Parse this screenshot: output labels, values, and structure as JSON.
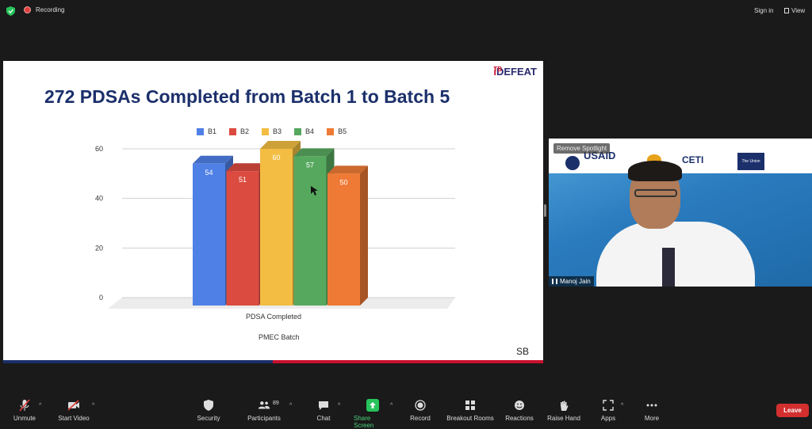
{
  "topbar": {
    "recording_label": "Recording",
    "signin_label": "Sign in",
    "view_label": "View"
  },
  "slide": {
    "brand_prefix": "i",
    "brand_main": "DEFEAT",
    "brand_suffix": "TB",
    "title": "272 PDSAs Completed from Batch 1 to Batch 5",
    "footer_tag": "SB"
  },
  "chart_data": {
    "type": "bar",
    "categories": [
      "PDSA Completed"
    ],
    "series": [
      {
        "name": "B1",
        "values": [
          54
        ],
        "color": "#4f80e6"
      },
      {
        "name": "B2",
        "values": [
          51
        ],
        "color": "#db4b3f"
      },
      {
        "name": "B3",
        "values": [
          60
        ],
        "color": "#f2bd42"
      },
      {
        "name": "B4",
        "values": [
          57
        ],
        "color": "#57a85f"
      },
      {
        "name": "B5",
        "values": [
          50
        ],
        "color": "#ef7a35"
      }
    ],
    "title": "",
    "xlabel": "PMEC Batch",
    "ylabel": "",
    "ylim": [
      0,
      60
    ],
    "yticks": [
      0,
      20,
      40,
      60
    ],
    "legend": "top",
    "grid": true,
    "3d": true
  },
  "video": {
    "spotlight_label": "Remove Spotlight",
    "participant_name": "Manoj Jain",
    "logos": {
      "usaid": "USAID",
      "ceti": "CETI",
      "union": "The Union"
    }
  },
  "toolbar": {
    "unmute": "Unmute",
    "start_video": "Start Video",
    "security": "Security",
    "participants": "Participants",
    "participants_count": "89",
    "chat": "Chat",
    "share_screen": "Share Screen",
    "record": "Record",
    "breakout_rooms": "Breakout Rooms",
    "reactions": "Reactions",
    "raise_hand": "Raise Hand",
    "apps": "Apps",
    "more": "More",
    "leave": "Leave"
  },
  "colors": {
    "accent_green": "#27c35b",
    "leave_red": "#d32f2f",
    "title_navy": "#1b2f6b",
    "brand_red": "#c8102e"
  }
}
